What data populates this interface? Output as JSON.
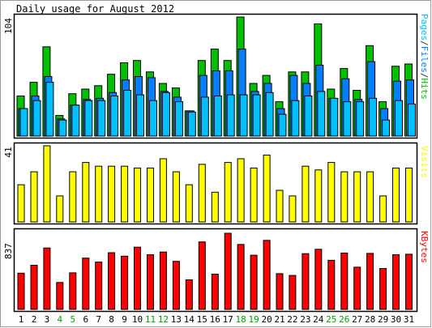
{
  "chart_data": {
    "type": "bar",
    "title": "Daily usage for August 2012",
    "categories": [
      "1",
      "2",
      "3",
      "4",
      "5",
      "6",
      "7",
      "8",
      "9",
      "10",
      "11",
      "12",
      "13",
      "14",
      "15",
      "16",
      "17",
      "18",
      "19",
      "20",
      "21",
      "22",
      "23",
      "24",
      "25",
      "26",
      "27",
      "28",
      "29",
      "30",
      "31"
    ],
    "weekend_days": [
      "4",
      "5",
      "11",
      "12",
      "18",
      "19",
      "25",
      "26"
    ],
    "panels": {
      "hits_panel": {
        "ymax": 104,
        "ymax_label": "104",
        "series": [
          {
            "name": "Hits",
            "color": "#00c000",
            "values": [
              35,
              47,
              78,
              18,
              37,
              41,
              44,
              54,
              64,
              66,
              56,
              46,
              42,
              22,
              66,
              76,
              66,
              104,
              46,
              53,
              30,
              56,
              56,
              98,
              41,
              59,
              40,
              79,
              30,
              61,
              63
            ]
          },
          {
            "name": "Files",
            "color": "#0080ff",
            "values": [
              24,
              35,
              52,
              15,
              27,
              32,
              33,
              38,
              49,
              52,
              51,
              39,
              34,
              22,
              53,
              57,
              57,
              76,
              39,
              46,
              24,
              53,
              46,
              62,
              33,
              50,
              32,
              65,
              24,
              48,
              49
            ]
          },
          {
            "name": "Pages",
            "color": "#00c0ff",
            "values": [
              24,
              31,
              47,
              14,
              27,
              31,
              31,
              35,
              40,
              36,
              31,
              38,
              30,
              21,
              34,
              35,
              36,
              36,
              36,
              38,
              19,
              31,
              35,
              39,
              33,
              30,
              30,
              33,
              14,
              31,
              28
            ]
          }
        ],
        "axis_label_parts": [
          {
            "text": "Pages",
            "color": "#00c0ff"
          },
          {
            "text": "/",
            "color": "#333333"
          },
          {
            "text": "Files",
            "color": "#0080ff"
          },
          {
            "text": "/",
            "color": "#333333"
          },
          {
            "text": "Hits",
            "color": "#00c000"
          }
        ]
      },
      "visits_panel": {
        "ymax": 41,
        "ymax_label": "41",
        "series": [
          {
            "name": "Visits",
            "color": "#ffff00",
            "values": [
              20,
              27,
              41,
              14,
              27,
              32,
              30,
              30,
              30,
              29,
              29,
              34,
              27,
              20,
              31,
              16,
              32,
              34,
              29,
              36,
              17,
              14,
              30,
              28,
              32,
              27,
              27,
              27,
              14,
              29,
              29
            ]
          }
        ],
        "axis_label_parts": [
          {
            "text": "Visits",
            "color": "#ffff00"
          }
        ]
      },
      "kbytes_panel": {
        "ymax": 837,
        "ymax_label": "837",
        "series": [
          {
            "name": "KBytes",
            "color": "#ff0000",
            "values": [
              398,
              485,
              675,
              296,
              402,
              564,
              520,
              623,
              585,
              684,
              600,
              630,
              528,
              325,
              742,
              387,
              837,
              714,
              596,
              759,
              393,
              373,
              613,
              661,
              540,
              620,
              464,
              615,
              450,
              601,
              606
            ]
          }
        ],
        "axis_label_parts": [
          {
            "text": "KBytes",
            "color": "#ff0000"
          }
        ]
      }
    }
  },
  "colors": {
    "background": "#ffffff",
    "frame": "#000000",
    "weekday_label": "#000000",
    "weekend_label": "#00a000"
  }
}
